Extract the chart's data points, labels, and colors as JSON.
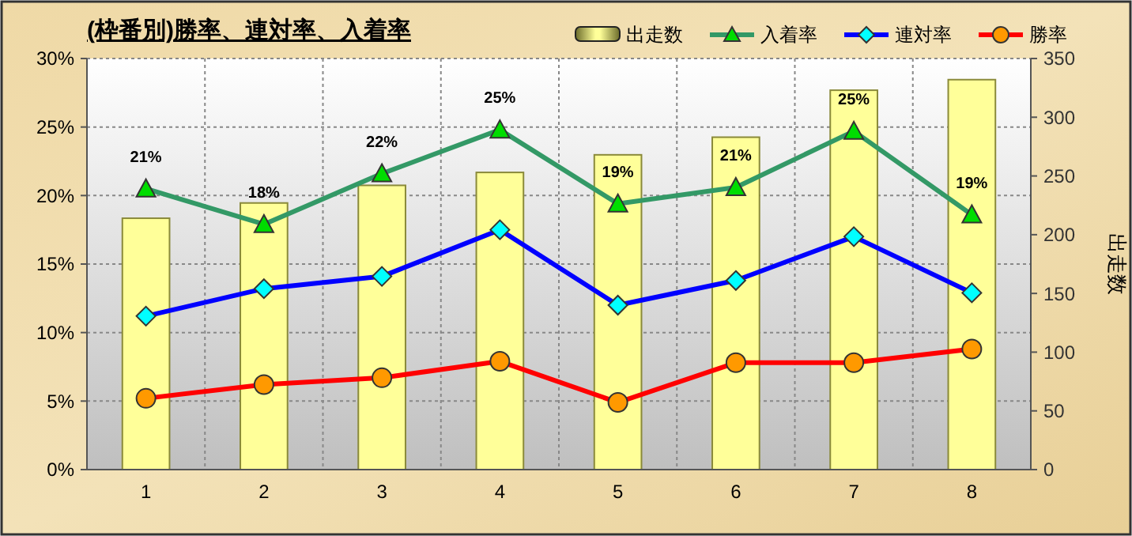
{
  "chart_data": {
    "type": "bar",
    "title": "(枠番別)勝率、連対率、入着率",
    "categories": [
      "1",
      "2",
      "3",
      "4",
      "5",
      "6",
      "7",
      "8"
    ],
    "series": [
      {
        "name": "出走数",
        "axis": "y2",
        "color": "#ffff99",
        "values": [
          214,
          227,
          242,
          253,
          268,
          283,
          323,
          332
        ]
      },
      {
        "name": "入着率",
        "type": "line",
        "color": "#339966",
        "marker": "triangle",
        "values": [
          20.5,
          17.9,
          21.6,
          24.8,
          19.4,
          20.6,
          24.7,
          18.6
        ],
        "value_labels": [
          "21%",
          "18%",
          "22%",
          "25%",
          "19%",
          "21%",
          "25%",
          "19%"
        ]
      },
      {
        "name": "連対率",
        "type": "line",
        "color": "#0000ff",
        "marker": "diamond",
        "values": [
          11.2,
          13.2,
          14.1,
          17.5,
          12.0,
          13.8,
          17.0,
          12.9
        ]
      },
      {
        "name": "勝率",
        "type": "line",
        "color": "#ff0000",
        "marker": "circle",
        "values": [
          5.2,
          6.2,
          6.7,
          7.9,
          4.9,
          7.8,
          7.8,
          8.8
        ]
      }
    ],
    "ylim": [
      0,
      30
    ],
    "yticks": [
      {
        "value": 0,
        "label": "0%"
      },
      {
        "value": 5,
        "label": "5%"
      },
      {
        "value": 10,
        "label": "10%"
      },
      {
        "value": 15,
        "label": "15%"
      },
      {
        "value": 20,
        "label": "20%"
      },
      {
        "value": 25,
        "label": "25%"
      },
      {
        "value": 30,
        "label": "30%"
      }
    ],
    "y2lim": [
      0,
      350
    ],
    "y2ticks": [
      0,
      50,
      100,
      150,
      200,
      250,
      300,
      350
    ],
    "y2label": "出走数",
    "grid": true,
    "legend": "top right"
  }
}
